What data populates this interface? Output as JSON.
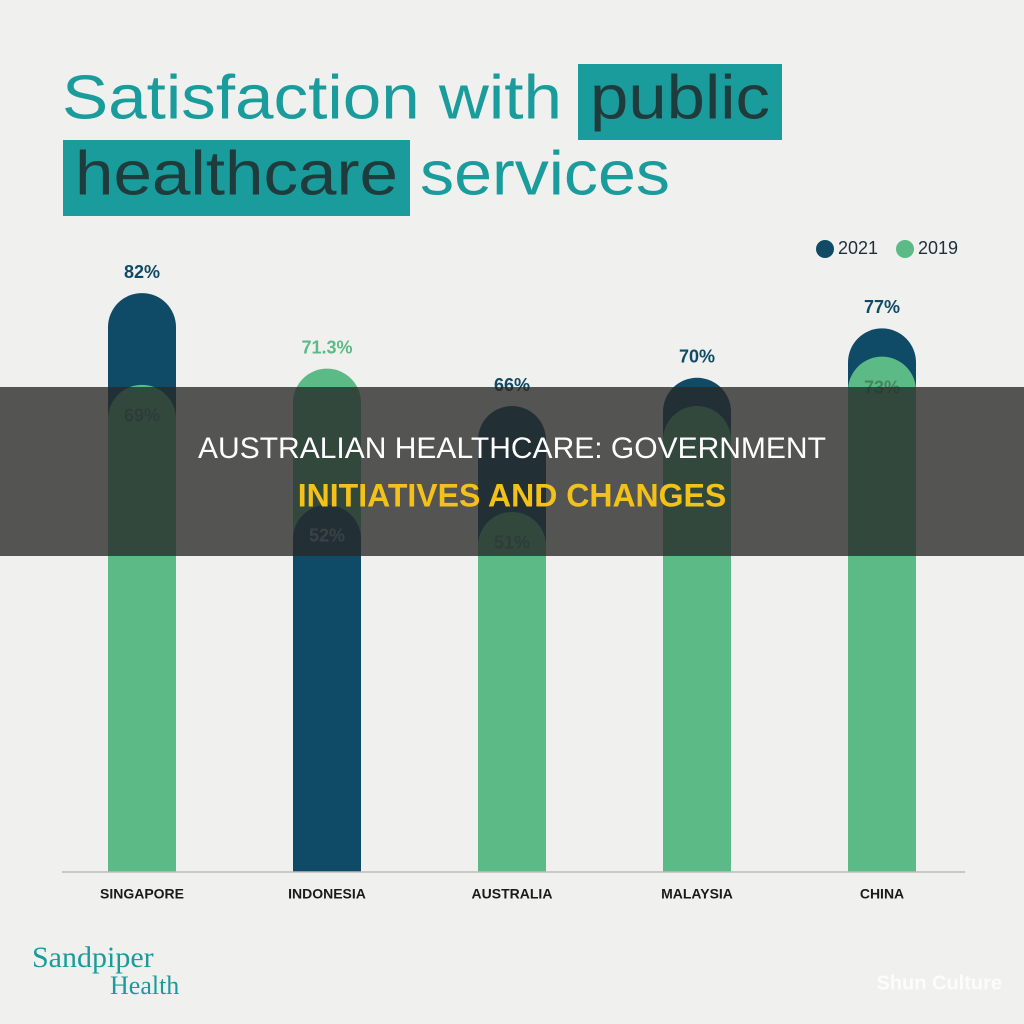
{
  "chart_data": {
    "type": "bar",
    "title_parts": [
      "Satisfaction with",
      "public",
      "healthcare",
      "services"
    ],
    "categories": [
      "SINGAPORE",
      "INDONESIA",
      "AUSTRALIA",
      "MALAYSIA",
      "CHINA"
    ],
    "series": [
      {
        "name": "2021",
        "color": "#0f4a66",
        "values": [
          82,
          52,
          66,
          70,
          77
        ],
        "value_labels": [
          "82%",
          "52%",
          "66%",
          "70%",
          "77%"
        ]
      },
      {
        "name": "2019",
        "color": "#5cba86",
        "values": [
          69,
          71.3,
          51,
          66,
          73
        ],
        "value_labels": [
          "69%",
          "71.3%",
          "51%",
          null,
          "73%"
        ]
      }
    ],
    "legend": "top-right"
  },
  "banner": {
    "line1": "AUSTRALIAN HEALTHCARE: GOVERNMENT",
    "line2": "INITIATIVES AND CHANGES"
  },
  "branding": {
    "logo_line1": "Sandpiper",
    "logo_line2": "Health",
    "watermark": "Shun Culture"
  }
}
